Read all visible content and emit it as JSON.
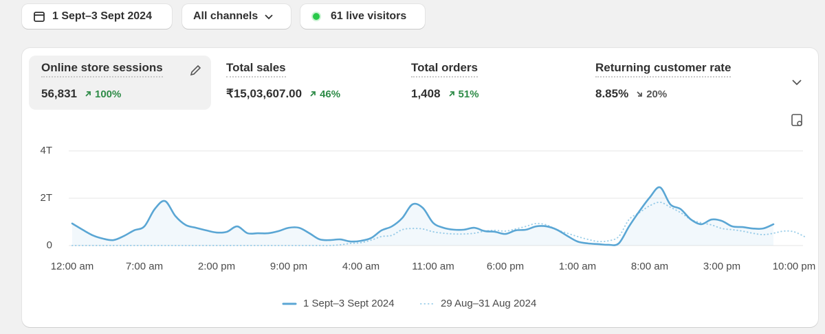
{
  "toolbar": {
    "date_range": "1 Sept–3 Sept 2024",
    "channel": "All channels",
    "live_visitors": "61 live visitors"
  },
  "metrics": [
    {
      "title": "Online store sessions",
      "value": "56,831",
      "change": "100%"
    },
    {
      "title": "Total sales",
      "value": "₹15,03,607.00",
      "change": "46%"
    },
    {
      "title": "Total orders",
      "value": "1,408",
      "change": "51%"
    },
    {
      "title": "Returning customer rate",
      "value": "8.85%",
      "change": "20%"
    }
  ],
  "chart_data": {
    "type": "line",
    "categories": [
      "12:00 am",
      null,
      null,
      null,
      null,
      null,
      null,
      "7:00 am",
      null,
      null,
      null,
      null,
      null,
      null,
      "2:00 pm",
      null,
      null,
      null,
      null,
      null,
      null,
      "9:00 pm",
      null,
      null,
      null,
      null,
      null,
      null,
      "4:00 am",
      null,
      null,
      null,
      null,
      null,
      null,
      "11:00 am",
      null,
      null,
      null,
      null,
      null,
      null,
      "6:00 pm",
      null,
      null,
      null,
      null,
      null,
      null,
      "1:00 am",
      null,
      null,
      null,
      null,
      null,
      null,
      "8:00 am",
      null,
      null,
      null,
      null,
      null,
      null,
      "3:00 pm",
      null,
      null,
      null,
      null,
      null,
      null,
      "10:00 pm",
      null
    ],
    "series": [
      {
        "name": "1 Sept–3 Sept 2024",
        "color": "#5aa6d4",
        "values": [
          930,
          670,
          430,
          290,
          230,
          400,
          640,
          810,
          1540,
          1880,
          1250,
          870,
          750,
          640,
          550,
          580,
          810,
          520,
          520,
          520,
          610,
          750,
          750,
          520,
          260,
          230,
          260,
          170,
          200,
          320,
          640,
          810,
          1160,
          1740,
          1590,
          960,
          750,
          670,
          670,
          750,
          610,
          580,
          490,
          640,
          670,
          810,
          810,
          670,
          410,
          170,
          90,
          60,
          30,
          90,
          810,
          1450,
          2030,
          2460,
          1740,
          1540,
          1100,
          900,
          1100,
          1040,
          810,
          780,
          720,
          720,
          900,
          null,
          null,
          null
        ]
      },
      {
        "name": "29 Aug–31 Aug 2024",
        "color": "#9fd0ea",
        "values": [
          0,
          0,
          0,
          0,
          0,
          0,
          0,
          0,
          0,
          0,
          0,
          0,
          0,
          0,
          0,
          0,
          0,
          0,
          0,
          0,
          0,
          0,
          0,
          0,
          0,
          0,
          30,
          90,
          120,
          230,
          380,
          430,
          670,
          720,
          700,
          580,
          520,
          490,
          490,
          520,
          610,
          640,
          610,
          700,
          810,
          930,
          870,
          670,
          520,
          380,
          260,
          170,
          200,
          380,
          1100,
          1390,
          1680,
          1830,
          1620,
          1390,
          1100,
          960,
          870,
          720,
          670,
          610,
          520,
          460,
          520,
          610,
          580,
          380
        ]
      }
    ],
    "ylim": [
      0,
      4000
    ],
    "yticks": [
      0,
      {
        "value": 2000,
        "label": "2T"
      },
      {
        "value": 4000,
        "label": "4T"
      }
    ],
    "grid": true
  }
}
